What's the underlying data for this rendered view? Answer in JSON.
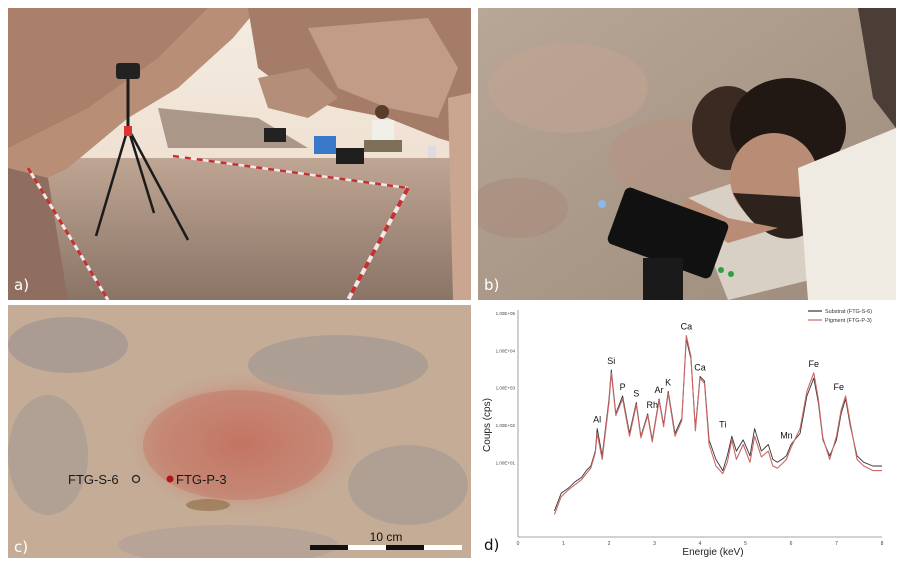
{
  "panels": {
    "a": {
      "label": "a)"
    },
    "b": {
      "label": "b)"
    },
    "c": {
      "label": "c)",
      "points": [
        {
          "name": "FTG-S-6",
          "marker": "hollow",
          "color": "#222222"
        },
        {
          "name": "FTG-P-3",
          "marker": "filled",
          "color": "#b01818"
        }
      ],
      "scalebar": {
        "label": "10 cm"
      }
    },
    "d": {
      "label": "d)"
    }
  },
  "chart_data": {
    "type": "line",
    "xlabel": "Energie (keV)",
    "ylabel": "Coups (cps)",
    "xlim": [
      0,
      8
    ],
    "xticks": [
      "0",
      "1",
      "2",
      "3",
      "4",
      "5",
      "6",
      "7",
      "8"
    ],
    "ylim": [
      0.1,
      100000
    ],
    "y_scale": "log",
    "yticks": [
      "1.00E+01",
      "1.00E+02",
      "1.00E+03",
      "1.00E+04",
      "1.00E+05"
    ],
    "legend_position": "top-right",
    "series": [
      {
        "name": "Substrat (FTG-S-6)",
        "color": "#333333",
        "x": [
          0.8,
          0.95,
          1.1,
          1.25,
          1.4,
          1.5,
          1.6,
          1.7,
          1.74,
          1.85,
          2.0,
          2.05,
          2.15,
          2.3,
          2.45,
          2.6,
          2.7,
          2.85,
          2.95,
          3.1,
          3.2,
          3.3,
          3.45,
          3.6,
          3.7,
          3.8,
          3.9,
          4.0,
          4.1,
          4.2,
          4.35,
          4.5,
          4.6,
          4.7,
          4.8,
          4.95,
          5.1,
          5.2,
          5.35,
          5.5,
          5.6,
          5.7,
          5.8,
          5.9,
          6.0,
          6.2,
          6.35,
          6.5,
          6.6,
          6.7,
          6.85,
          7.0,
          7.1,
          7.2,
          7.3,
          7.45,
          7.6,
          7.8,
          8.0
        ],
        "y": [
          0.5,
          1.5,
          2,
          3,
          4,
          6,
          8,
          20,
          80,
          15,
          500,
          3000,
          200,
          600,
          60,
          400,
          50,
          200,
          40,
          500,
          100,
          800,
          60,
          150,
          20000,
          6000,
          80,
          2000,
          1500,
          40,
          12,
          6,
          15,
          50,
          20,
          40,
          15,
          80,
          20,
          30,
          12,
          10,
          12,
          15,
          30,
          60,
          600,
          1800,
          400,
          40,
          15,
          40,
          200,
          500,
          100,
          15,
          10,
          8,
          8
        ]
      },
      {
        "name": "Pigment (FTG-P-3)",
        "color": "#cc6666",
        "x": [
          0.8,
          0.95,
          1.1,
          1.25,
          1.4,
          1.5,
          1.6,
          1.7,
          1.74,
          1.85,
          2.0,
          2.05,
          2.15,
          2.3,
          2.45,
          2.6,
          2.7,
          2.85,
          2.95,
          3.1,
          3.2,
          3.3,
          3.45,
          3.6,
          3.7,
          3.8,
          3.9,
          4.0,
          4.1,
          4.2,
          4.35,
          4.5,
          4.6,
          4.7,
          4.8,
          4.95,
          5.1,
          5.2,
          5.35,
          5.5,
          5.6,
          5.7,
          5.8,
          5.9,
          6.0,
          6.2,
          6.35,
          6.5,
          6.6,
          6.7,
          6.85,
          7.0,
          7.1,
          7.2,
          7.3,
          7.45,
          7.6,
          7.8,
          8.0
        ],
        "y": [
          0.4,
          1.2,
          1.8,
          2.5,
          3.5,
          5,
          7,
          18,
          60,
          12,
          400,
          2500,
          180,
          500,
          50,
          350,
          45,
          180,
          35,
          450,
          90,
          700,
          50,
          130,
          25000,
          7000,
          70,
          1800,
          1300,
          30,
          8,
          5,
          10,
          40,
          12,
          30,
          10,
          50,
          14,
          20,
          8,
          7,
          9,
          12,
          25,
          80,
          800,
          2500,
          500,
          45,
          12,
          50,
          250,
          600,
          120,
          12,
          8,
          6,
          6
        ]
      }
    ],
    "annotations": [
      {
        "text": "Al",
        "x": 1.74,
        "y": 80
      },
      {
        "text": "Si",
        "x": 2.05,
        "y": 3000
      },
      {
        "text": "P",
        "x": 2.3,
        "y": 600
      },
      {
        "text": "S",
        "x": 2.6,
        "y": 400
      },
      {
        "text": "Rh",
        "x": 2.95,
        "y": 200
      },
      {
        "text": "Ar",
        "x": 3.1,
        "y": 500
      },
      {
        "text": "K",
        "x": 3.3,
        "y": 800
      },
      {
        "text": "Ca",
        "x": 3.7,
        "y": 25000
      },
      {
        "text": "Ca",
        "x": 4.0,
        "y": 2000
      },
      {
        "text": "Ti",
        "x": 4.5,
        "y": 60
      },
      {
        "text": "Mn",
        "x": 5.9,
        "y": 30
      },
      {
        "text": "Fe",
        "x": 6.5,
        "y": 2500
      },
      {
        "text": "Fe",
        "x": 7.05,
        "y": 600
      }
    ]
  }
}
